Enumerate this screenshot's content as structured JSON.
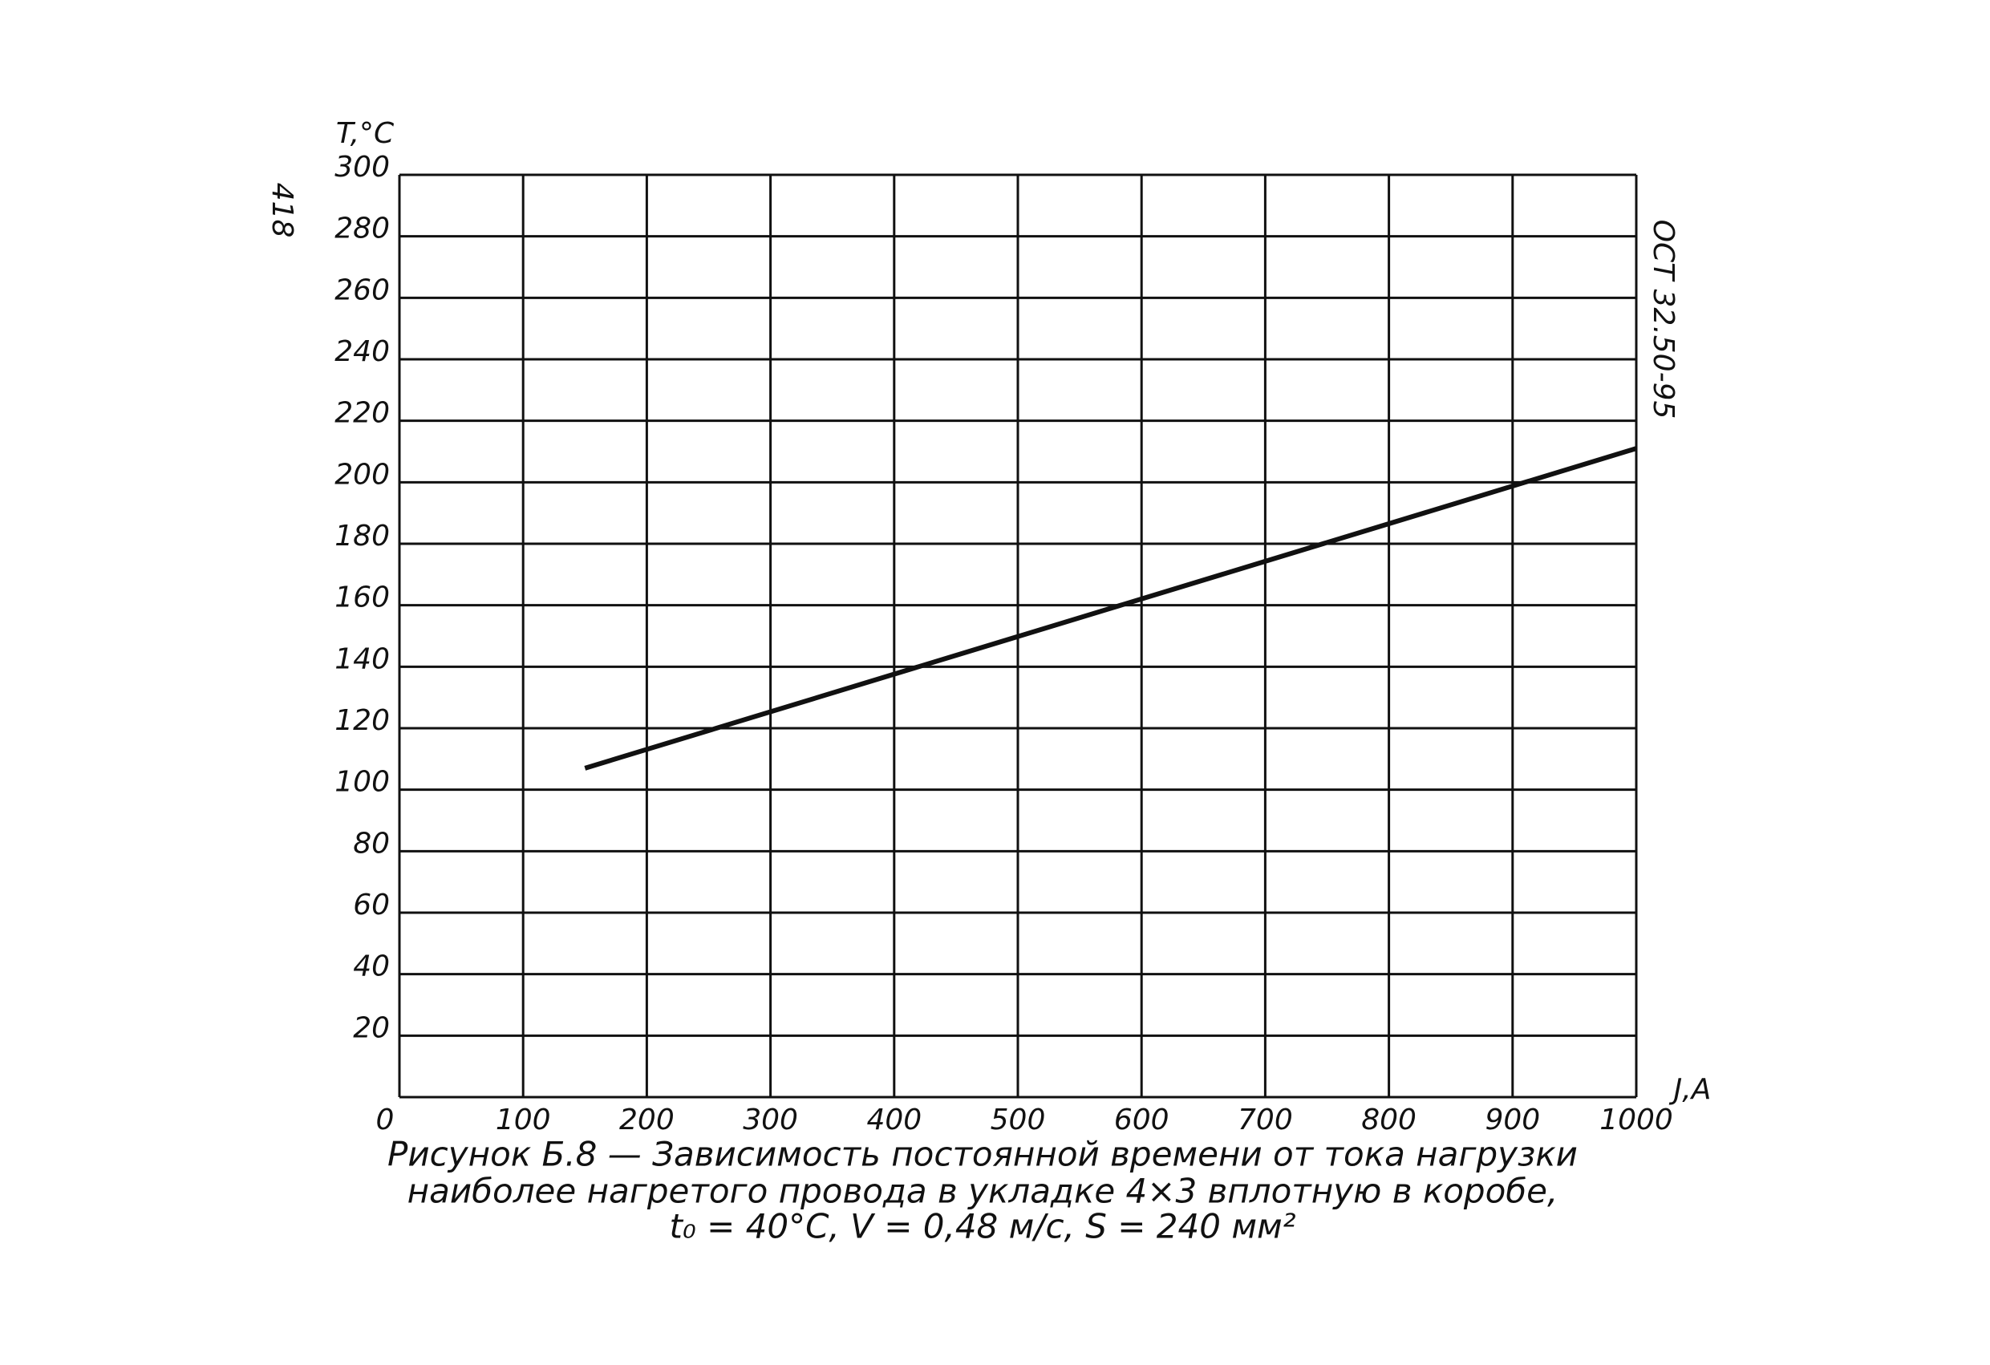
{
  "chart_data": {
    "type": "line",
    "page_number": "418",
    "standard": "ОСТ 32.50-95",
    "y_label": "T,°C",
    "x_label": "J,A",
    "caption": [
      "Рисунок Б.8 — Зависимость постоянной времени от тока нагрузки",
      "наиболее нагретого провода в укладке 4×3 вплотную в коробе,",
      "t₀ = 40°C,  V = 0,48 м/с,  S = 240 мм²"
    ],
    "x": [
      150,
      1000
    ],
    "series": [
      {
        "color": "#111111",
        "values": [
          107,
          211
        ]
      }
    ],
    "xlim": [
      0,
      1000
    ],
    "xticks": [
      0,
      100,
      200,
      300,
      400,
      500,
      600,
      700,
      800,
      900,
      1000
    ],
    "ylim": [
      0,
      300
    ],
    "yticks": [
      20,
      40,
      60,
      80,
      100,
      120,
      140,
      160,
      180,
      200,
      220,
      240,
      260,
      280,
      300
    ],
    "grid": true
  }
}
